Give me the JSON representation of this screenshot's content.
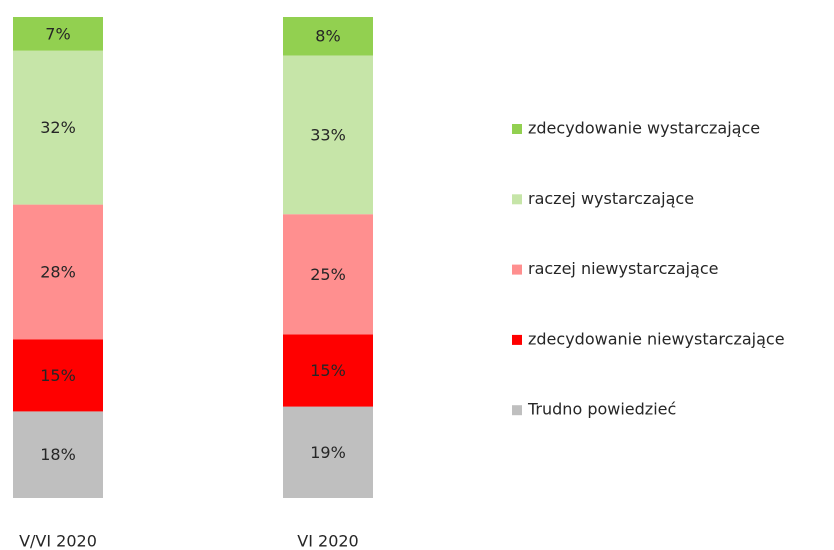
{
  "chart_data": {
    "type": "stacked_bar",
    "categories": [
      "V/VI 2020",
      "VI 2020"
    ],
    "series": [
      {
        "name": "Trudno powiedzieć",
        "color": "#bfbfbf",
        "values": [
          18,
          19
        ],
        "value_labels": [
          "18%",
          "19%"
        ]
      },
      {
        "name": "zdecydowanie niewystarczające",
        "color": "#ff0000",
        "values": [
          15,
          15
        ],
        "value_labels": [
          "15%",
          "15%"
        ]
      },
      {
        "name": "raczej niewystarczające",
        "color": "#ff8f8f",
        "values": [
          28,
          25
        ],
        "value_labels": [
          "28%",
          "25%"
        ]
      },
      {
        "name": "raczej wystarczające",
        "color": "#c6e5a8",
        "values": [
          32,
          33
        ],
        "value_labels": [
          "32%",
          "33%"
        ]
      },
      {
        "name": "zdecydowanie wystarczające",
        "color": "#92d050",
        "values": [
          7,
          8
        ],
        "value_labels": [
          "7%",
          "8%"
        ]
      }
    ],
    "legend": "right"
  }
}
